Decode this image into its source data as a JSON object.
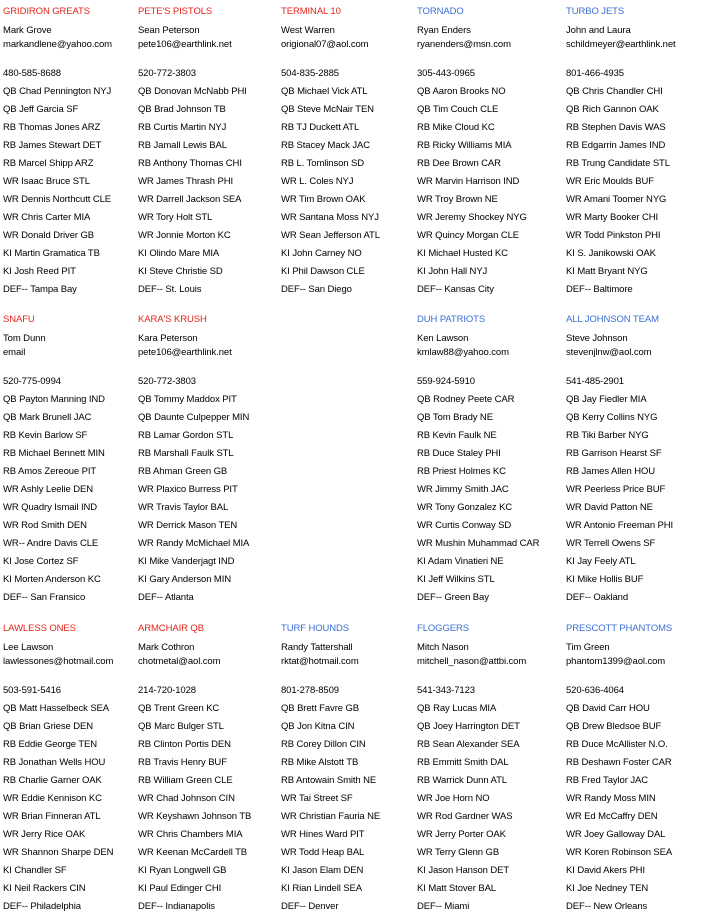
{
  "rows": [
    [
      {
        "title": "GRIDIRON GREATS",
        "color": "#e2261c",
        "owner": "Mark Grove",
        "email": "markandlene@yahoo.com",
        "phone": "480-585-8688",
        "roster": [
          "QB Chad Pennington NYJ",
          "QB Jeff Garcia SF",
          "RB Thomas Jones ARZ",
          "RB James Stewart DET",
          "RB Marcel Shipp ARZ",
          "WR Isaac Bruce STL",
          "WR Dennis Northcutt CLE",
          "WR Chris Carter MIA",
          "WR Donald Driver GB",
          "KI Martin Gramatica TB",
          "KI Josh Reed PIT",
          "DEF-- Tampa Bay"
        ]
      },
      {
        "title": "PETE'S PISTOLS",
        "color": "#e2261c",
        "owner": "Sean Peterson",
        "email": "pete106@earthlink.net",
        "phone": "520-772-3803",
        "roster": [
          "QB Donovan McNabb PHI",
          "QB Brad Johnson TB",
          "RB Curtis Martin NYJ",
          "RB Jamall Lewis BAL",
          "RB Anthony Thomas CHI",
          "WR James Thrash PHI",
          "WR Darrell Jackson SEA",
          "WR Tory Holt STL",
          "WR Jonnie Morton KC",
          "KI Olindo Mare MIA",
          "KI Steve Christie SD",
          "DEF-- St. Louis"
        ]
      },
      {
        "title": "TERMINAL 10",
        "color": "#e2261c",
        "owner": "West Warren",
        "email": "origional07@aol.com",
        "phone": "504-835-2885",
        "roster": [
          "QB Michael Vick ATL",
          "QB Steve McNair TEN",
          "RB TJ Duckett ATL",
          "RB Stacey Mack JAC",
          "RB L. Tomlinson SD",
          "WR L. Coles NYJ",
          "WR Tim Brown OAK",
          "WR Santana Moss NYJ",
          "WR Sean Jefferson ATL",
          "KI John Carney NO",
          "KI Phil Dawson CLE",
          "DEF-- San Diego"
        ]
      },
      {
        "title": "TORNADO",
        "color": "#3b6fd3",
        "owner": "Ryan Enders",
        "email": "ryanenders@msn.com",
        "phone": "305-443-0965",
        "roster": [
          "QB Aaron Brooks NO",
          "QB Tim Couch CLE",
          "RB Mike Cloud KC",
          "RB Ricky Williams MIA",
          "RB Dee Brown CAR",
          "WR Marvin Harrison IND",
          "WR Troy Brown NE",
          "WR Jeremy Shockey NYG",
          "WR Quincy Morgan CLE",
          "KI Michael Husted KC",
          "KI John Hall NYJ",
          "DEF-- Kansas City"
        ]
      },
      {
        "title": "TURBO JETS",
        "color": "#3b6fd3",
        "owner": "John and Laura",
        "email": "schildmeyer@earthlink.net",
        "phone": "801-466-4935",
        "roster": [
          "QB Chris Chandler CHI",
          "QB Rich Gannon OAK",
          "RB Stephen Davis WAS",
          "RB Edgarrin James IND",
          "RB Trung Candidate STL",
          "WR Eric Moulds BUF",
          "WR Amani Toomer NYG",
          "WR Marty Booker CHI",
          "WR Todd Pinkston PHI",
          "KI S. Janikowski OAK",
          "KI Matt Bryant NYG",
          "DEF-- Baltimore"
        ]
      }
    ],
    [
      {
        "title": "SNAFU",
        "color": "#e2261c",
        "owner": "Tom Dunn",
        "email": "email",
        "phone": "520-775-0994",
        "roster": [
          "QB Payton Manning IND",
          "QB Mark Brunell JAC",
          "RB Kevin Barlow SF",
          "RB Michael Bennett MIN",
          "RB Amos Zereoue PIT",
          "WR Ashly Leelie DEN",
          "WR Quadry Ismail IND",
          "WR Rod Smith DEN",
          "WR-- Andre Davis CLE",
          "KI Jose Cortez SF",
          "KI Morten Anderson KC",
          "DEF-- San Fransico"
        ]
      },
      {
        "title": "KARA'S KRUSH",
        "color": "#e2261c",
        "owner": "Kara Peterson",
        "email": "pete106@earthlink.net",
        "phone": "520-772-3803",
        "roster": [
          "QB Tommy Maddox PIT",
          "QB Daunte Culpepper MIN",
          "RB Lamar Gordon STL",
          "RB Marshall Faulk STL",
          "RB Ahman Green GB",
          "WR Plaxico Burress PIT",
          "WR Travis Taylor BAL",
          "WR Derrick Mason TEN",
          "WR Randy McMichael MIA",
          "KI Mike Vanderjagt IND",
          "KI Gary Anderson MIN",
          "DEF-- Atlanta"
        ]
      },
      {
        "title": "DUH PATRIOTS",
        "color": "#3b6fd3",
        "owner": "Ken Lawson",
        "email": "kmlaw88@yahoo.com",
        "phone": "559-924-5910",
        "roster": [
          "QB Rodney Peete CAR",
          "QB Tom Brady NE",
          "RB Kevin Faulk NE",
          "RB Duce Staley PHI",
          "RB Priest Holmes KC",
          "WR Jimmy Smith JAC",
          "WR Tony Gonzalez KC",
          "WR Curtis Conway SD",
          "WR Mushin Muhammad CAR",
          "KI Adam Vinatieri NE",
          "KI Jeff Wilkins STL",
          "DEF-- Green Bay"
        ]
      },
      {
        "title": "ALL JOHNSON TEAM",
        "color": "#3b6fd3",
        "owner": "Steve Johnson",
        "email": "stevenjlnw@aol.com",
        "phone": "541-485-2901",
        "roster": [
          "QB Jay Fiedler MIA",
          "QB Kerry Collins NYG",
          "RB Tiki Barber NYG",
          "RB Garrison Hearst SF",
          "RB James Allen HOU",
          "WR Peerless Price BUF",
          "WR David Patton NE",
          "WR Antonio Freeman PHI",
          "WR Terrell Owens SF",
          "KI Jay Feely ATL",
          "KI Mike Hollis BUF",
          "DEF-- Oakland"
        ]
      }
    ],
    [
      {
        "title": "LAWLESS ONES",
        "color": "#e2261c",
        "owner": "Lee Lawson",
        "email": "lawlessones@hotmail.com",
        "phone": "503-591-5416",
        "roster": [
          "QB Matt Hasselbeck SEA",
          "QB Brian Griese DEN",
          "RB Eddie George TEN",
          "RB Jonathan Wells HOU",
          "RB Charlie Garner OAK",
          "WR Eddie Kennison KC",
          "WR Brian Finneran ATL",
          "WR Jerry Rice OAK",
          "WR Shannon Sharpe DEN",
          "KI Chandler SF",
          "KI Neil Rackers CIN",
          "DEF-- Philadelphia"
        ]
      },
      {
        "title": "ARMCHAIR QB",
        "color": "#e2261c",
        "owner": "Mark Cothron",
        "email": "chotmetal@aol.com",
        "phone": "214-720-1028",
        "roster": [
          "QB Trent Green KC",
          "QB Marc Bulger STL",
          "RB Clinton Portis DEN",
          "RB Travis Henry BUF",
          "RB William Green CLE",
          "WR Chad Johnson CIN",
          "WR Keyshawn Johnson TB",
          "WR Chris Chambers MIA",
          "WR Keenan McCardell TB",
          "KI Ryan Longwell GB",
          "KI Paul Edinger CHI",
          "DEF-- Indianapolis"
        ]
      },
      {
        "title": "TURF HOUNDS",
        "color": "#3b6fd3",
        "owner": "Randy Tattershall",
        "email": "rktat@hotmail.com",
        "phone": "801-278-8509",
        "roster": [
          "QB Brett Favre GB",
          "QB Jon Kitna CIN",
          "RB Corey Dillon CIN",
          "RB Mike Alstott TB",
          "RB Antowain Smith NE",
          "WR Tai Street SF",
          "WR Christian Fauria NE",
          "WR Hines Ward PIT",
          "WR Todd Heap BAL",
          "KI Jason Elam DEN",
          "KI Rian Lindell SEA",
          "DEF-- Denver"
        ]
      },
      {
        "title": "FLOGGERS",
        "color": "#3b6fd3",
        "owner": "Mitch Nason",
        "email": "mitchell_nason@attbi.com",
        "phone": "541-343-7123",
        "roster": [
          "QB Ray Lucas MIA",
          "QB Joey Harrington DET",
          "RB Sean Alexander SEA",
          "RB Emmitt Smith DAL",
          "RB Warrick Dunn ATL",
          "WR Joe Horn NO",
          "WR Rod Gardner WAS",
          "WR Jerry Porter OAK",
          "WR Terry Glenn GB",
          "KI Jason Hanson DET",
          "KI Matt Stover BAL",
          "DEF-- Miami"
        ]
      },
      {
        "title": "PRESCOTT PHANTOMS",
        "color": "#3b6fd3",
        "owner": "Tim Green",
        "email": "phantom1399@aol.com",
        "phone": "520-636-4064",
        "roster": [
          "QB David Carr HOU",
          "QB Drew Bledsoe BUF",
          "RB Duce McAllister N.O.",
          "RB Deshawn Foster CAR",
          "RB Fred Taylor JAC",
          "WR Randy Moss MIN",
          "WR Ed McCaffry DEN",
          "WR Joey Galloway DAL",
          "WR Koren Robinson SEA",
          "KI David Akers PHI",
          "KI Joe Nedney TEN",
          "DEF-- New Orleans"
        ]
      }
    ]
  ]
}
